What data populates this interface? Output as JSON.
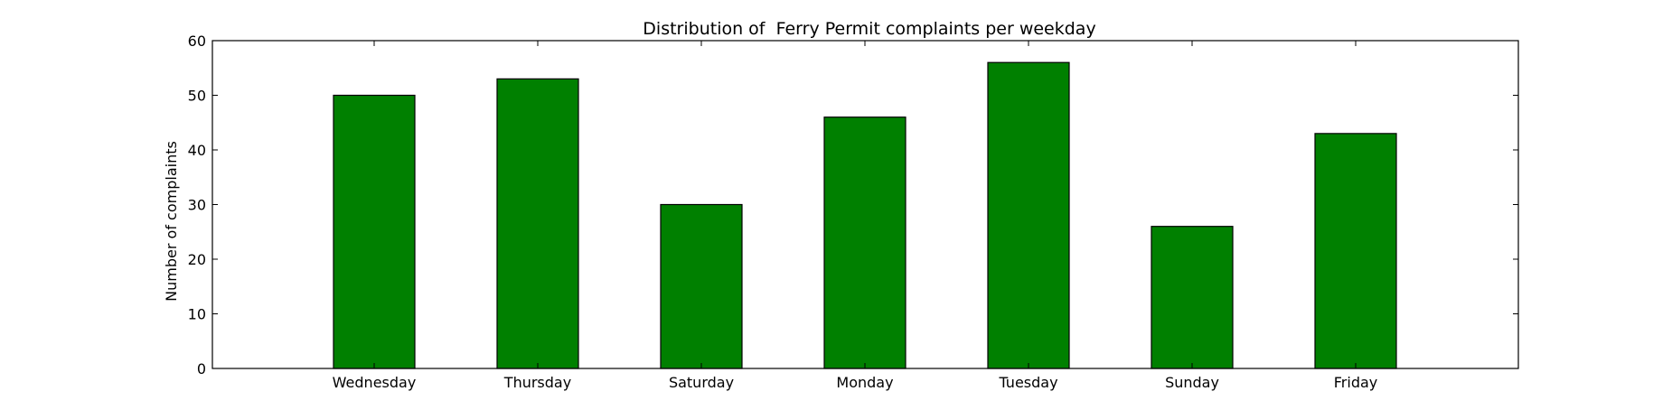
{
  "chart_data": {
    "type": "bar",
    "title": "Distribution of  Ferry Permit complaints per weekday",
    "xlabel": "",
    "ylabel": "Number of complaints",
    "categories": [
      "Wednesday",
      "Thursday",
      "Saturday",
      "Monday",
      "Tuesday",
      "Sunday",
      "Friday"
    ],
    "values": [
      50,
      53,
      30,
      46,
      56,
      26,
      43
    ],
    "ylim": [
      0,
      60
    ],
    "yticks": [
      0,
      10,
      20,
      30,
      40,
      50,
      60
    ],
    "grid": false,
    "legend": "none",
    "colors": {
      "bar_fill": "#008000",
      "bar_edge": "#000000",
      "axis": "#000000",
      "background": "#ffffff"
    }
  }
}
